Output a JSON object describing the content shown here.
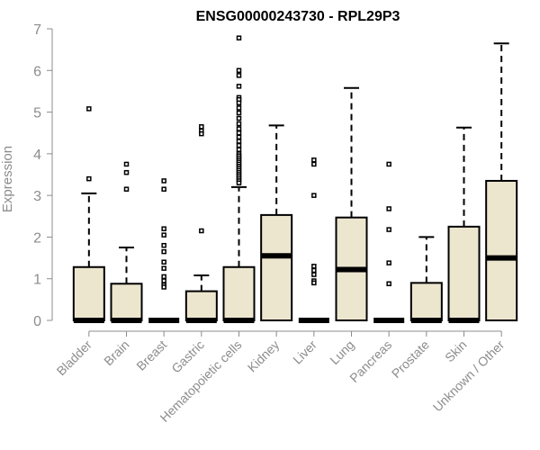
{
  "chart_data": {
    "type": "box",
    "title": "ENSG00000243730 - RPL29P3",
    "ylabel": "Expression",
    "xlabel": "",
    "ylim": [
      0,
      7
    ],
    "yticks": [
      0,
      1,
      2,
      3,
      4,
      5,
      6,
      7
    ],
    "grid": false,
    "legend": "none",
    "colors": {
      "box_fill": "#ede6cf",
      "box_stroke": "#000000",
      "axis": "#8c8c8c",
      "title": "#000000"
    },
    "categories": [
      "Bladder",
      "Brain",
      "Breast",
      "Gastric",
      "Hematopoietic cells",
      "Kidney",
      "Liver",
      "Lung",
      "Pancreas",
      "Prostate",
      "Skin",
      "Unknown / Other"
    ],
    "boxes": [
      {
        "q1": 0,
        "median": 0,
        "q3": 1.28,
        "whisker_low": 0,
        "whisker_high": 3.05,
        "outliers": [
          5.08,
          3.4
        ]
      },
      {
        "q1": 0,
        "median": 0,
        "q3": 0.88,
        "whisker_low": 0,
        "whisker_high": 1.75,
        "outliers": [
          3.75,
          3.55,
          3.15
        ]
      },
      {
        "q1": 0,
        "median": 0,
        "q3": 0,
        "whisker_low": 0,
        "whisker_high": 0,
        "outliers": [
          3.35,
          3.15,
          2.2,
          2.05,
          1.8,
          1.65,
          1.4,
          1.25,
          1.05,
          0.95,
          0.85,
          0.8
        ]
      },
      {
        "q1": 0,
        "median": 0,
        "q3": 0.7,
        "whisker_low": 0,
        "whisker_high": 1.08,
        "outliers": [
          4.65,
          4.55,
          4.48,
          2.15
        ]
      },
      {
        "q1": 0,
        "median": 0,
        "q3": 1.28,
        "whisker_low": 0,
        "whisker_high": 3.2,
        "outliers": [
          6.78,
          6.0,
          5.88,
          5.62,
          5.35,
          5.3,
          5.22,
          5.1,
          4.98,
          4.85,
          4.72,
          4.6,
          4.5,
          4.4,
          4.3,
          4.2,
          4.1,
          4.0,
          3.95,
          3.9,
          3.85,
          3.8,
          3.75,
          3.7,
          3.65,
          3.6,
          3.55,
          3.5,
          3.45,
          3.4,
          3.35,
          3.3
        ]
      },
      {
        "q1": 0,
        "median": 1.55,
        "q3": 2.53,
        "whisker_low": 0,
        "whisker_high": 4.68,
        "outliers": []
      },
      {
        "q1": 0,
        "median": 0,
        "q3": 0,
        "whisker_low": 0,
        "whisker_high": 0,
        "outliers": [
          3.85,
          3.75,
          3.0,
          1.3,
          1.2,
          1.1,
          0.95,
          0.9
        ]
      },
      {
        "q1": 0,
        "median": 1.22,
        "q3": 2.47,
        "whisker_low": 0,
        "whisker_high": 5.58,
        "outliers": []
      },
      {
        "q1": 0,
        "median": 0,
        "q3": 0,
        "whisker_low": 0,
        "whisker_high": 0,
        "outliers": [
          3.75,
          2.68,
          2.18,
          1.38,
          0.88
        ]
      },
      {
        "q1": 0,
        "median": 0,
        "q3": 0.9,
        "whisker_low": 0,
        "whisker_high": 2.0,
        "outliers": []
      },
      {
        "q1": 0,
        "median": 0,
        "q3": 2.25,
        "whisker_low": 0,
        "whisker_high": 4.63,
        "outliers": []
      },
      {
        "q1": 0,
        "median": 1.5,
        "q3": 3.35,
        "whisker_low": 0,
        "whisker_high": 6.65,
        "outliers": []
      }
    ]
  }
}
